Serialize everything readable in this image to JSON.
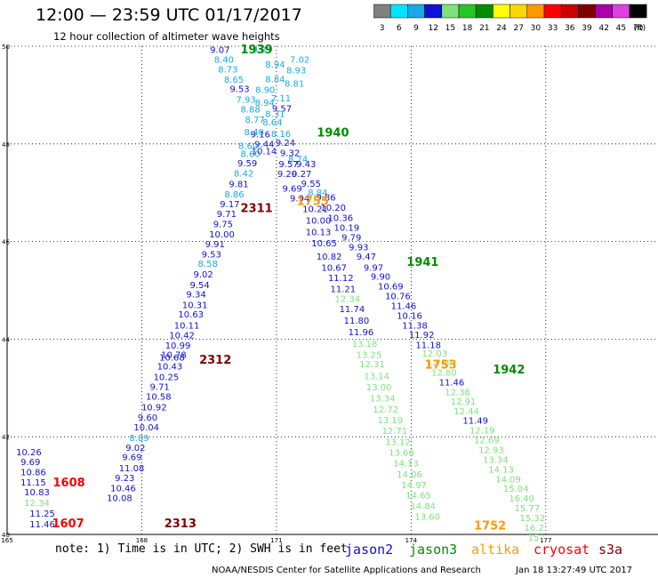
{
  "header": {
    "title": "12:00 — 23:59 UTC 01/17/2017",
    "subtitle": "12 hour collection of altimeter wave heights"
  },
  "color_scale": {
    "bins": [
      {
        "label": "3",
        "color": "#808080"
      },
      {
        "label": "6",
        "color": "#00e5ff"
      },
      {
        "label": "9",
        "color": "#19a9e6"
      },
      {
        "label": "12",
        "color": "#1010d8"
      },
      {
        "label": "15",
        "color": "#7ee27e"
      },
      {
        "label": "18",
        "color": "#25c725"
      },
      {
        "label": "21",
        "color": "#008c00"
      },
      {
        "label": "24",
        "color": "#ffff00"
      },
      {
        "label": "27",
        "color": "#ffd700"
      },
      {
        "label": "30",
        "color": "#ff9900"
      },
      {
        "label": "33",
        "color": "#ff0000"
      },
      {
        "label": "36",
        "color": "#cc0000"
      },
      {
        "label": "39",
        "color": "#800000"
      },
      {
        "label": "42",
        "color": "#aa00aa"
      },
      {
        "label": "45",
        "color": "#e040e0"
      },
      {
        "label": "70",
        "color": "#000000"
      }
    ],
    "unit": "(ft)"
  },
  "chart_data": {
    "type": "scatter",
    "x_ticks": [
      "165",
      "168",
      "171",
      "174",
      "177"
    ],
    "y_ticks": [
      "40",
      "42",
      "44",
      "46",
      "48",
      "50"
    ],
    "xlim": [
      165,
      179.5
    ],
    "ylim": [
      40,
      50
    ],
    "colors": {
      "c9": "#19a9e6",
      "c12": "#1010d8",
      "c15": "#7ee27e",
      "red": "#ff0000",
      "dred": "#800000",
      "orange": "#ff9900",
      "green": "#008c00"
    },
    "points": [
      {
        "x": 169.52,
        "y": 49.86,
        "v": "9.07",
        "c": "c12"
      },
      {
        "x": 169.61,
        "y": 49.66,
        "v": "8.40",
        "c": "c9"
      },
      {
        "x": 169.7,
        "y": 49.46,
        "v": "8.73",
        "c": "c9"
      },
      {
        "x": 169.83,
        "y": 49.25,
        "v": "8.65",
        "c": "c9"
      },
      {
        "x": 169.96,
        "y": 49.06,
        "v": "9.53",
        "c": "c12"
      },
      {
        "x": 170.1,
        "y": 48.84,
        "v": "7.93",
        "c": "c9"
      },
      {
        "x": 170.2,
        "y": 48.64,
        "v": "8.88",
        "c": "c9"
      },
      {
        "x": 170.3,
        "y": 48.43,
        "v": "8.77",
        "c": "c9"
      },
      {
        "x": 170.42,
        "y": 48.13,
        "v": "9.16",
        "c": "c12"
      },
      {
        "x": 170.51,
        "y": 47.93,
        "v": "9.44",
        "c": "c12"
      },
      {
        "x": 170.28,
        "y": 48.18,
        "v": "8.40",
        "c": "c9"
      },
      {
        "x": 170.15,
        "y": 47.9,
        "v": "8.60",
        "c": "c9"
      },
      {
        "x": 170.44,
        "y": 47.79,
        "v": "10.14",
        "c": "c12"
      },
      {
        "x": 170.2,
        "y": 47.73,
        "v": "8.60",
        "c": "c9"
      },
      {
        "x": 170.13,
        "y": 47.54,
        "v": "9.59",
        "c": "c12"
      },
      {
        "x": 170.05,
        "y": 47.33,
        "v": "8.42",
        "c": "c9"
      },
      {
        "x": 169.94,
        "y": 47.11,
        "v": "9.81",
        "c": "c12"
      },
      {
        "x": 169.84,
        "y": 46.9,
        "v": "8.86",
        "c": "c9"
      },
      {
        "x": 169.74,
        "y": 46.7,
        "v": "9.17",
        "c": "c12"
      },
      {
        "x": 169.67,
        "y": 46.5,
        "v": "9.71",
        "c": "c12"
      },
      {
        "x": 169.59,
        "y": 46.29,
        "v": "9.75",
        "c": "c12"
      },
      {
        "x": 169.5,
        "y": 46.08,
        "v": "10.00",
        "c": "c12"
      },
      {
        "x": 169.41,
        "y": 45.88,
        "v": "9.91",
        "c": "c12"
      },
      {
        "x": 169.33,
        "y": 45.67,
        "v": "9.53",
        "c": "c12"
      },
      {
        "x": 169.25,
        "y": 45.48,
        "v": "8.58",
        "c": "c9"
      },
      {
        "x": 169.15,
        "y": 45.26,
        "v": "9.02",
        "c": "c12"
      },
      {
        "x": 169.07,
        "y": 45.05,
        "v": "9.54",
        "c": "c12"
      },
      {
        "x": 168.99,
        "y": 44.85,
        "v": "9.34",
        "c": "c12"
      },
      {
        "x": 168.9,
        "y": 44.64,
        "v": "10.31",
        "c": "c12"
      },
      {
        "x": 168.81,
        "y": 44.44,
        "v": "10.63",
        "c": "c12"
      },
      {
        "x": 168.72,
        "y": 44.22,
        "v": "10.11",
        "c": "c12"
      },
      {
        "x": 168.61,
        "y": 44.02,
        "v": "10.42",
        "c": "c12"
      },
      {
        "x": 168.52,
        "y": 43.81,
        "v": "10.99",
        "c": "c12"
      },
      {
        "x": 168.43,
        "y": 43.62,
        "v": "10.78",
        "c": "c12"
      },
      {
        "x": 168.39,
        "y": 43.56,
        "v": "10.68",
        "c": "c12"
      },
      {
        "x": 168.34,
        "y": 43.38,
        "v": "10.43",
        "c": "c12"
      },
      {
        "x": 168.26,
        "y": 43.16,
        "v": "10.25",
        "c": "c12"
      },
      {
        "x": 168.18,
        "y": 42.96,
        "v": "9.71",
        "c": "c12"
      },
      {
        "x": 168.09,
        "y": 42.76,
        "v": "10.58",
        "c": "c12"
      },
      {
        "x": 167.99,
        "y": 42.54,
        "v": "10.92",
        "c": "c12"
      },
      {
        "x": 167.91,
        "y": 42.33,
        "v": "9.60",
        "c": "c12"
      },
      {
        "x": 167.82,
        "y": 42.13,
        "v": "10.04",
        "c": "c12"
      },
      {
        "x": 167.72,
        "y": 41.91,
        "v": "8.89",
        "c": "c9"
      },
      {
        "x": 167.64,
        "y": 41.71,
        "v": "9.02",
        "c": "c12"
      },
      {
        "x": 167.56,
        "y": 41.52,
        "v": "9.69",
        "c": "c12"
      },
      {
        "x": 167.49,
        "y": 41.29,
        "v": "11.08",
        "c": "c12"
      },
      {
        "x": 167.4,
        "y": 41.09,
        "v": "9.23",
        "c": "c12"
      },
      {
        "x": 167.3,
        "y": 40.88,
        "v": "10.46",
        "c": "c12"
      },
      {
        "x": 167.22,
        "y": 40.68,
        "v": "10.08",
        "c": "c12"
      },
      {
        "x": 170.46,
        "y": 49.86,
        "v": "9.89",
        "c": "c9"
      },
      {
        "x": 171.3,
        "y": 49.66,
        "v": "7.02",
        "c": "c9"
      },
      {
        "x": 170.75,
        "y": 49.56,
        "v": "8.94",
        "c": "c9"
      },
      {
        "x": 171.22,
        "y": 49.44,
        "v": "8.93",
        "c": "c9"
      },
      {
        "x": 170.75,
        "y": 49.26,
        "v": "8.84",
        "c": "c9"
      },
      {
        "x": 171.18,
        "y": 49.17,
        "v": "8.81",
        "c": "c9"
      },
      {
        "x": 170.53,
        "y": 49.04,
        "v": "8.90",
        "c": "c9"
      },
      {
        "x": 170.88,
        "y": 48.87,
        "v": "7.11",
        "c": "c9"
      },
      {
        "x": 170.52,
        "y": 48.78,
        "v": "8.94",
        "c": "c9"
      },
      {
        "x": 170.9,
        "y": 48.66,
        "v": "9.57",
        "c": "c12"
      },
      {
        "x": 170.75,
        "y": 48.55,
        "v": "8.31",
        "c": "c9"
      },
      {
        "x": 170.69,
        "y": 48.38,
        "v": "8.64",
        "c": "c9"
      },
      {
        "x": 170.88,
        "y": 48.14,
        "v": "8.16",
        "c": "c9"
      },
      {
        "x": 170.98,
        "y": 47.96,
        "v": "9.24",
        "c": "c12"
      },
      {
        "x": 171.08,
        "y": 47.75,
        "v": "9.32",
        "c": "c12"
      },
      {
        "x": 171.26,
        "y": 47.62,
        "v": "8.74",
        "c": "c9"
      },
      {
        "x": 171.05,
        "y": 47.52,
        "v": "9.57",
        "c": "c12"
      },
      {
        "x": 171.44,
        "y": 47.52,
        "v": "9.43",
        "c": "c12"
      },
      {
        "x": 171.34,
        "y": 47.32,
        "v": "9.27",
        "c": "c12"
      },
      {
        "x": 171.02,
        "y": 47.32,
        "v": "9.20",
        "c": "c12"
      },
      {
        "x": 171.55,
        "y": 47.12,
        "v": "9.55",
        "c": "c12"
      },
      {
        "x": 171.13,
        "y": 47.02,
        "v": "9.69",
        "c": "c12"
      },
      {
        "x": 171.7,
        "y": 46.94,
        "v": "8.84",
        "c": "c9"
      },
      {
        "x": 171.3,
        "y": 46.82,
        "v": "9.94",
        "c": "c12"
      },
      {
        "x": 171.88,
        "y": 46.84,
        "v": "9.86",
        "c": "c12"
      },
      {
        "x": 171.58,
        "y": 46.6,
        "v": "10.21",
        "c": "c12"
      },
      {
        "x": 171.98,
        "y": 46.63,
        "v": "10.20",
        "c": "c12"
      },
      {
        "x": 172.14,
        "y": 46.42,
        "v": "10.36",
        "c": "c12"
      },
      {
        "x": 171.65,
        "y": 46.37,
        "v": "10.00",
        "c": "c12"
      },
      {
        "x": 172.28,
        "y": 46.22,
        "v": "10.19",
        "c": "c12"
      },
      {
        "x": 171.65,
        "y": 46.13,
        "v": "10.13",
        "c": "c12"
      },
      {
        "x": 172.45,
        "y": 46.02,
        "v": "9.79",
        "c": "c12"
      },
      {
        "x": 171.78,
        "y": 45.9,
        "v": "10.65",
        "c": "c12"
      },
      {
        "x": 172.61,
        "y": 45.82,
        "v": "9.93",
        "c": "c12"
      },
      {
        "x": 172.78,
        "y": 45.63,
        "v": "9.47",
        "c": "c12"
      },
      {
        "x": 171.89,
        "y": 45.63,
        "v": "10.82",
        "c": "c12"
      },
      {
        "x": 172.94,
        "y": 45.4,
        "v": "9.97",
        "c": "c12"
      },
      {
        "x": 172.0,
        "y": 45.4,
        "v": "10.67",
        "c": "c12"
      },
      {
        "x": 173.1,
        "y": 45.22,
        "v": "9.90",
        "c": "c12"
      },
      {
        "x": 172.15,
        "y": 45.19,
        "v": "11.12",
        "c": "c12"
      },
      {
        "x": 173.26,
        "y": 45.02,
        "v": "10.69",
        "c": "c12"
      },
      {
        "x": 172.2,
        "y": 44.96,
        "v": "11.21",
        "c": "c12"
      },
      {
        "x": 173.42,
        "y": 44.82,
        "v": "10.76",
        "c": "c12"
      },
      {
        "x": 172.3,
        "y": 44.76,
        "v": "12.34",
        "c": "c15"
      },
      {
        "x": 173.55,
        "y": 44.62,
        "v": "11.46",
        "c": "c12"
      },
      {
        "x": 172.4,
        "y": 44.55,
        "v": "11.74",
        "c": "c12"
      },
      {
        "x": 173.68,
        "y": 44.42,
        "v": "10.16",
        "c": "c12"
      },
      {
        "x": 172.5,
        "y": 44.32,
        "v": "11.80",
        "c": "c12"
      },
      {
        "x": 173.8,
        "y": 44.22,
        "v": "11.38",
        "c": "c12"
      },
      {
        "x": 172.6,
        "y": 44.08,
        "v": "11.96",
        "c": "c12"
      },
      {
        "x": 173.95,
        "y": 44.03,
        "v": "11.92",
        "c": "c12"
      },
      {
        "x": 174.1,
        "y": 43.82,
        "v": "11.18",
        "c": "c12"
      },
      {
        "x": 172.68,
        "y": 43.84,
        "v": "13.18",
        "c": "c15"
      },
      {
        "x": 174.24,
        "y": 43.64,
        "v": "12.03",
        "c": "c15"
      },
      {
        "x": 172.78,
        "y": 43.62,
        "v": "13.25",
        "c": "c15"
      },
      {
        "x": 174.35,
        "y": 43.45,
        "v": "12.39",
        "c": "c15"
      },
      {
        "x": 174.45,
        "y": 43.25,
        "v": "12.80",
        "c": "c15"
      },
      {
        "x": 174.62,
        "y": 43.05,
        "v": "11.46",
        "c": "c12"
      },
      {
        "x": 172.85,
        "y": 43.42,
        "v": "12.31",
        "c": "c15"
      },
      {
        "x": 174.75,
        "y": 42.85,
        "v": "12.38",
        "c": "c15"
      },
      {
        "x": 172.95,
        "y": 43.18,
        "v": "13.14",
        "c": "c15"
      },
      {
        "x": 174.88,
        "y": 42.66,
        "v": "12.91",
        "c": "c15"
      },
      {
        "x": 174.95,
        "y": 42.46,
        "v": "12.44",
        "c": "c15"
      },
      {
        "x": 173.0,
        "y": 42.95,
        "v": "13.00",
        "c": "c15"
      },
      {
        "x": 175.15,
        "y": 42.27,
        "v": "11.49",
        "c": "c12"
      },
      {
        "x": 173.08,
        "y": 42.72,
        "v": "13.34",
        "c": "c15"
      },
      {
        "x": 175.3,
        "y": 42.07,
        "v": "12.19",
        "c": "c15"
      },
      {
        "x": 173.15,
        "y": 42.5,
        "v": "12.72",
        "c": "c15"
      },
      {
        "x": 175.4,
        "y": 41.87,
        "v": "12.69",
        "c": "c15"
      },
      {
        "x": 173.25,
        "y": 42.28,
        "v": "13.19",
        "c": "c15"
      },
      {
        "x": 175.5,
        "y": 41.67,
        "v": "12.93",
        "c": "c15"
      },
      {
        "x": 173.35,
        "y": 42.06,
        "v": "12.71",
        "c": "c15"
      },
      {
        "x": 175.6,
        "y": 41.47,
        "v": "13.34",
        "c": "c15"
      },
      {
        "x": 173.42,
        "y": 41.83,
        "v": "13.12",
        "c": "c15"
      },
      {
        "x": 175.72,
        "y": 41.27,
        "v": "14.13",
        "c": "c15"
      },
      {
        "x": 173.5,
        "y": 41.61,
        "v": "13.66",
        "c": "c15"
      },
      {
        "x": 175.88,
        "y": 41.07,
        "v": "14.09",
        "c": "c15"
      },
      {
        "x": 173.6,
        "y": 41.39,
        "v": "14.13",
        "c": "c15"
      },
      {
        "x": 176.05,
        "y": 40.87,
        "v": "15.04",
        "c": "c15"
      },
      {
        "x": 173.68,
        "y": 41.17,
        "v": "14.06",
        "c": "c15"
      },
      {
        "x": 176.18,
        "y": 40.67,
        "v": "16.40",
        "c": "c15"
      },
      {
        "x": 173.78,
        "y": 40.95,
        "v": "14.97",
        "c": "c15"
      },
      {
        "x": 176.3,
        "y": 40.47,
        "v": "15.77",
        "c": "c15"
      },
      {
        "x": 173.88,
        "y": 40.74,
        "v": "14.65",
        "c": "c15"
      },
      {
        "x": 176.42,
        "y": 40.27,
        "v": "15.32",
        "c": "c15"
      },
      {
        "x": 173.98,
        "y": 40.52,
        "v": "14.84",
        "c": "c15"
      },
      {
        "x": 176.52,
        "y": 40.07,
        "v": "16.2",
        "c": "c15"
      },
      {
        "x": 174.08,
        "y": 40.3,
        "v": "13.60",
        "c": "c15"
      },
      {
        "x": 176.6,
        "y": 39.87,
        "v": "15",
        "c": "c15"
      },
      {
        "x": 165.2,
        "y": 41.62,
        "v": "10.26",
        "c": "c12"
      },
      {
        "x": 165.3,
        "y": 41.42,
        "v": "9.69",
        "c": "c12"
      },
      {
        "x": 165.3,
        "y": 41.21,
        "v": "10.86",
        "c": "c12"
      },
      {
        "x": 165.3,
        "y": 41.0,
        "v": "11.15",
        "c": "c12"
      },
      {
        "x": 165.38,
        "y": 40.8,
        "v": "10.83",
        "c": "c12"
      },
      {
        "x": 165.38,
        "y": 40.58,
        "v": "12.34",
        "c": "c15"
      },
      {
        "x": 165.5,
        "y": 40.36,
        "v": "11.25",
        "c": "c12"
      },
      {
        "x": 165.5,
        "y": 40.15,
        "v": "11.46",
        "c": "c12"
      }
    ],
    "labels": [
      {
        "x": 170.2,
        "y": 49.85,
        "text": "1939",
        "c": "green"
      },
      {
        "x": 171.9,
        "y": 48.15,
        "text": "1940",
        "c": "green"
      },
      {
        "x": 171.45,
        "y": 46.75,
        "text": "1755",
        "c": "orange"
      },
      {
        "x": 170.2,
        "y": 46.6,
        "text": "2311",
        "c": "dred"
      },
      {
        "x": 173.9,
        "y": 45.5,
        "text": "1941",
        "c": "green"
      },
      {
        "x": 174.3,
        "y": 43.4,
        "text": "1753",
        "c": "orange"
      },
      {
        "x": 169.28,
        "y": 43.5,
        "text": "2312",
        "c": "dred"
      },
      {
        "x": 175.82,
        "y": 43.3,
        "text": "1942",
        "c": "green"
      },
      {
        "x": 166.02,
        "y": 40.98,
        "text": "1608",
        "c": "red"
      },
      {
        "x": 166.0,
        "y": 40.15,
        "text": "1607",
        "c": "red"
      },
      {
        "x": 168.5,
        "y": 40.15,
        "text": "2313",
        "c": "dred"
      },
      {
        "x": 175.4,
        "y": 40.1,
        "text": "1752",
        "c": "orange"
      }
    ]
  },
  "footer": {
    "note": "note: 1) Time is in UTC; 2) SWH is in feet",
    "missions": [
      {
        "name": "jason2",
        "color": "#1010d8"
      },
      {
        "name": "jason3",
        "color": "#008c00"
      },
      {
        "name": "altika",
        "color": "#ff9900"
      },
      {
        "name": "cryosat",
        "color": "#ff0000"
      },
      {
        "name": "s3a",
        "color": "#800000"
      }
    ],
    "credit": "NOAA/NESDIS Center for Satellite Applications and Research",
    "timestamp": "Jan 18 13:27:49 UTC 2017"
  }
}
